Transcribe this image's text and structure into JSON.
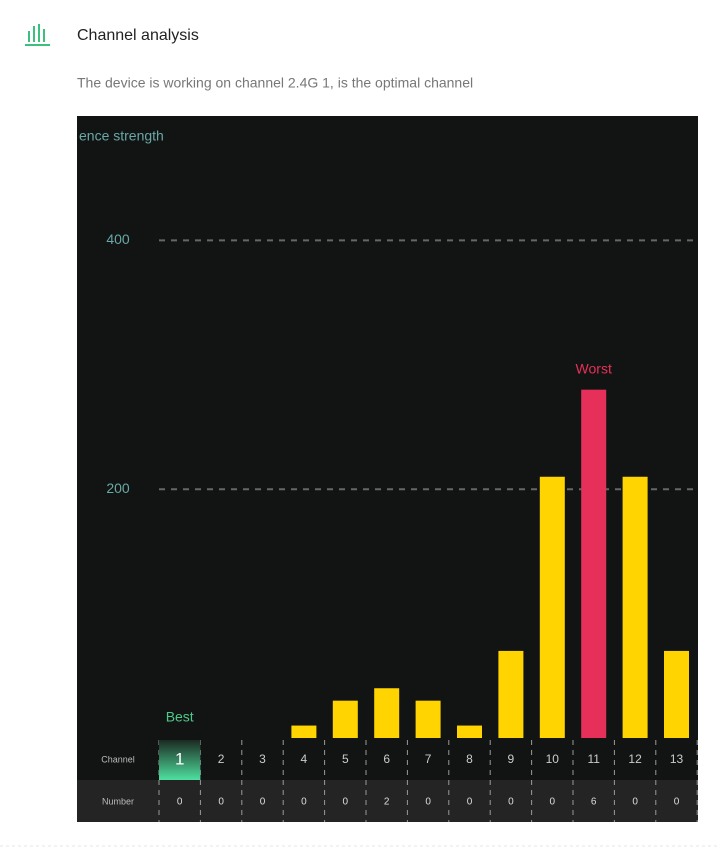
{
  "header": {
    "title": "Channel analysis",
    "subtitle": "The device is working on channel 2.4G 1, is the optimal channel"
  },
  "chart_data": {
    "type": "bar",
    "y_label": "ence strength",
    "categories": [
      "1",
      "2",
      "3",
      "4",
      "5",
      "6",
      "7",
      "8",
      "9",
      "10",
      "11",
      "12",
      "13"
    ],
    "values": [
      0,
      0,
      0,
      10,
      30,
      40,
      30,
      10,
      70,
      210,
      280,
      210,
      70
    ],
    "colors": [
      "#ffd400",
      "#ffd400",
      "#ffd400",
      "#ffd400",
      "#ffd400",
      "#ffd400",
      "#ffd400",
      "#ffd400",
      "#ffd400",
      "#ffd400",
      "#e6305a",
      "#ffd400",
      "#ffd400"
    ],
    "ylim": [
      0,
      500
    ],
    "yticks": [
      200,
      400
    ],
    "grid": true,
    "annotations": [
      {
        "text": "Best",
        "category": "1",
        "color": "#4fc98a"
      },
      {
        "text": "Worst",
        "category": "11",
        "color": "#e6305a"
      }
    ],
    "selected_category": "1",
    "row_labels": [
      "Channel",
      "Number"
    ],
    "numbers": [
      0,
      0,
      0,
      0,
      0,
      2,
      0,
      0,
      0,
      0,
      6,
      0,
      0
    ]
  }
}
